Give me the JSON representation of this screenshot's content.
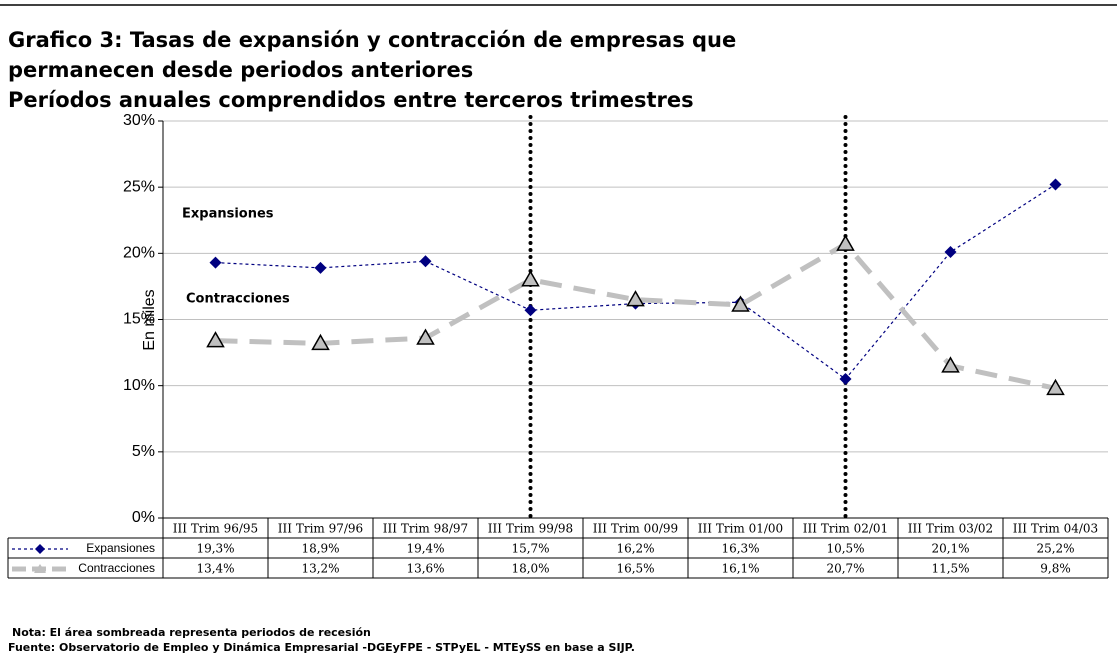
{
  "chart_data": {
    "type": "line",
    "title": [
      "Grafico 3: Tasas de expansión y contracción de empresas que",
      "permanecen desde periodos anteriores",
      "Períodos anuales comprendidos entre terceros trimestres"
    ],
    "y_label": "En miles",
    "categories": [
      "III Trim 96/95",
      "III Trim 97/96",
      "III Trim 98/97",
      "III Trim 99/98",
      "III Trim 00/99",
      "III Trim 01/00",
      "III Trim 02/01",
      "III Trim 03/02",
      "III Trim 04/03"
    ],
    "series": [
      {
        "name": "Expansiones",
        "color": "#000080",
        "values": [
          19.3,
          18.9,
          19.4,
          15.7,
          16.2,
          16.3,
          10.5,
          20.1,
          25.2
        ],
        "value_labels": [
          "19,3%",
          "18,9%",
          "19,4%",
          "15,7%",
          "16,2%",
          "16,3%",
          "10,5%",
          "20,1%",
          "25,2%"
        ]
      },
      {
        "name": "Contracciones",
        "color": "#c0c0c0",
        "values": [
          13.4,
          13.2,
          13.6,
          18.0,
          16.5,
          16.1,
          20.7,
          11.5,
          9.8
        ],
        "value_labels": [
          "13,4%",
          "13,2%",
          "13,6%",
          "18,0%",
          "16,5%",
          "16,1%",
          "20,7%",
          "11,5%",
          "9,8%"
        ]
      }
    ],
    "ylim": [
      0,
      30
    ],
    "yticks": [
      {
        "value": 0,
        "label": "0%"
      },
      {
        "value": 5,
        "label": "5%"
      },
      {
        "value": 10,
        "label": "10%"
      },
      {
        "value": 15,
        "label": "15%"
      },
      {
        "value": 20,
        "label": "20%"
      },
      {
        "value": 25,
        "label": "25%"
      },
      {
        "value": 30,
        "label": "30%"
      }
    ],
    "grid": true,
    "vlines": [
      3,
      6
    ],
    "annotations": [
      "Expansiones",
      "Contracciones"
    ],
    "notes": [
      "Nota: El área sombreada representa periodos de recesión",
      "Fuente: Observatorio de Empleo y Dinámica Empresarial -DGEyFPE - STPyEL -  MTEySS en base a SIJP."
    ]
  }
}
